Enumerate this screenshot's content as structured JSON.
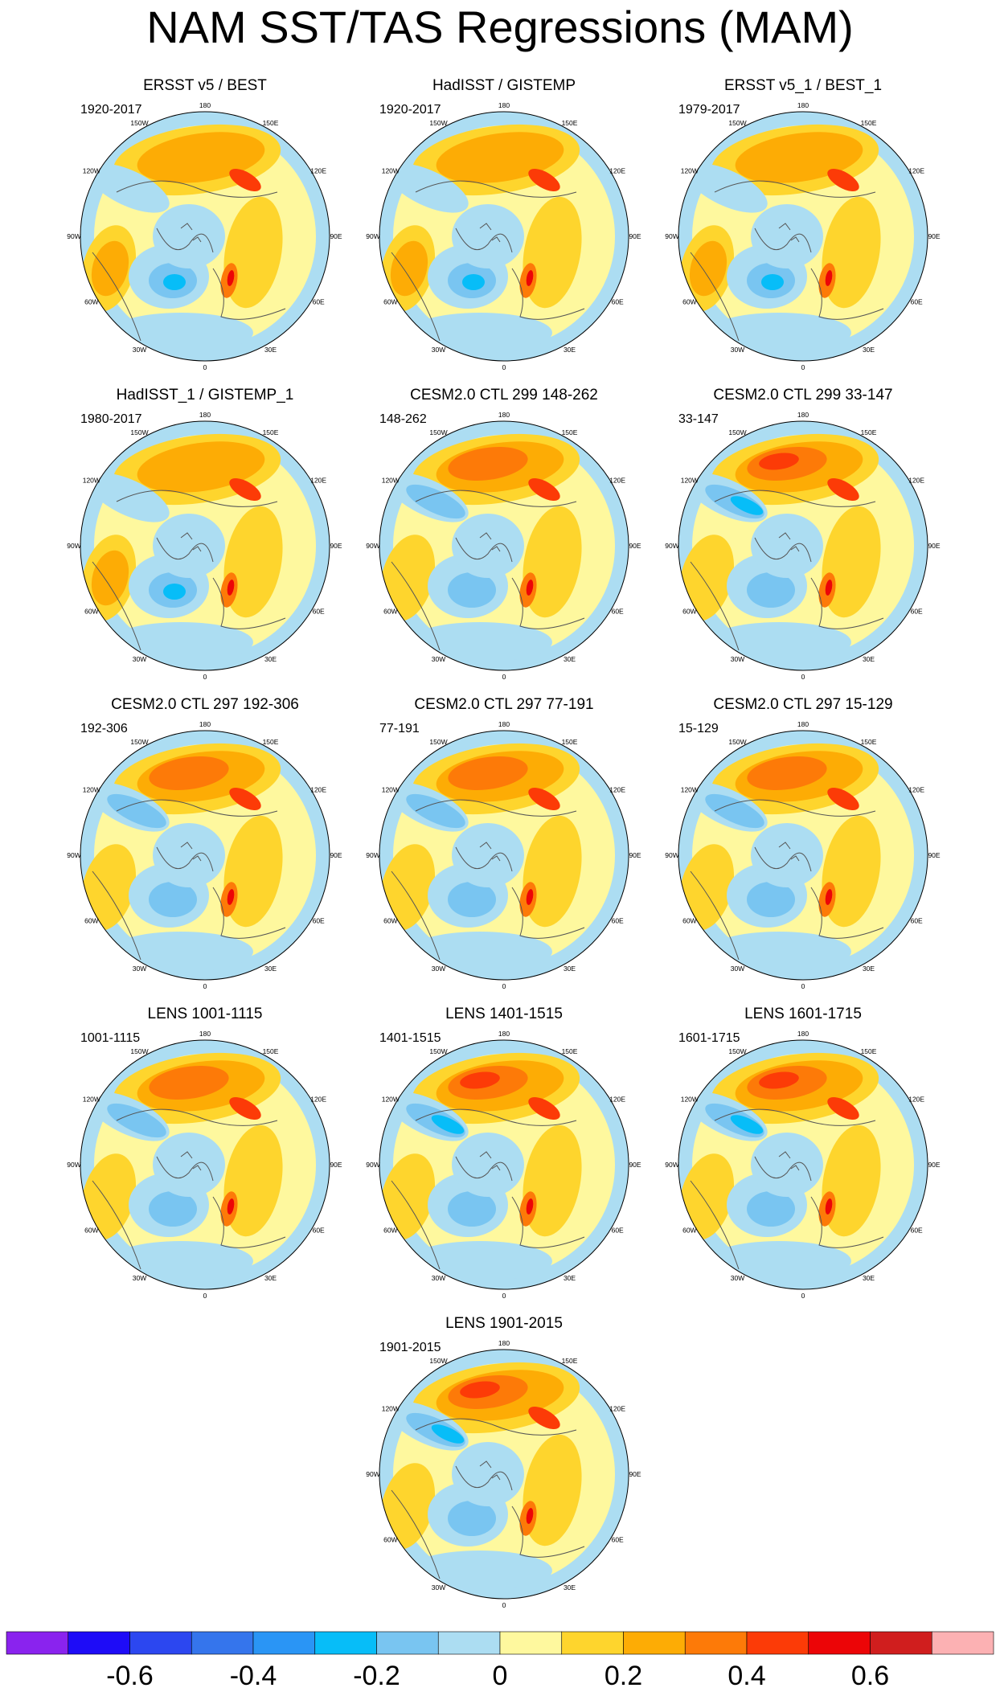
{
  "main_title": "NAM SST/TAS Regressions (MAM)",
  "chart_data": {
    "type": "polar-map-panels",
    "projection": "north polar stereographic",
    "variable": "NAM SST/TAS regression, MAM",
    "longitude_labels": [
      "180",
      "150E",
      "120E",
      "90E",
      "60E",
      "30E",
      "0",
      "30W",
      "60W",
      "90W",
      "120W",
      "150W"
    ],
    "panels": [
      {
        "title": "ERSST v5 / BEST",
        "period": "1920-2017",
        "pattern": "obs"
      },
      {
        "title": "HadISST / GISTEMP",
        "period": "1920-2017",
        "pattern": "obs"
      },
      {
        "title": "ERSST v5_1 / BEST_1",
        "period": "1979-2017",
        "pattern": "obs"
      },
      {
        "title": "HadISST_1 / GISTEMP_1",
        "period": "1980-2017",
        "pattern": "obs"
      },
      {
        "title": "CESM2.0 CTL 299 148-262",
        "period": "148-262",
        "pattern": "model"
      },
      {
        "title": "CESM2.0 CTL 299 33-147",
        "period": "33-147",
        "pattern": "model-strong"
      },
      {
        "title": "CESM2.0 CTL 297 192-306",
        "period": "192-306",
        "pattern": "model"
      },
      {
        "title": "CESM2.0 CTL 297 77-191",
        "period": "77-191",
        "pattern": "model"
      },
      {
        "title": "CESM2.0 CTL 297 15-129",
        "period": "15-129",
        "pattern": "model"
      },
      {
        "title": "LENS 1001-1115",
        "period": "1001-1115",
        "pattern": "model"
      },
      {
        "title": "LENS 1401-1515",
        "period": "1401-1515",
        "pattern": "model-strong"
      },
      {
        "title": "LENS 1601-1715",
        "period": "1601-1715",
        "pattern": "model-strong"
      },
      {
        "title": "LENS 1901-2015",
        "period": "1901-2015",
        "pattern": "model-strong"
      }
    ],
    "colorbar": {
      "colors": [
        "#8A23EE",
        "#1E0CF7",
        "#2C47F0",
        "#3575EC",
        "#2A95F5",
        "#07BDF8",
        "#79C5F1",
        "#ACDDF2",
        "#FEF89E",
        "#FED52D",
        "#FDAC05",
        "#FD7A08",
        "#FC3B07",
        "#EC0507",
        "#D01E1E",
        "#FCB1B3"
      ],
      "tick_labels": [
        "-0.6",
        "-0.4",
        "-0.2",
        "0",
        "0.2",
        "0.4",
        "0.6"
      ],
      "tick_values": [
        -0.6,
        -0.4,
        -0.2,
        0,
        0.2,
        0.4,
        0.6
      ],
      "range": [
        -0.8,
        0.8
      ],
      "step": 0.1
    }
  }
}
